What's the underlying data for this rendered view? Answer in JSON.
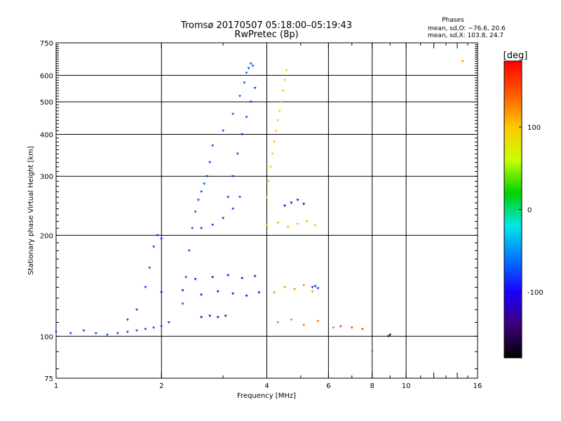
{
  "chart_data": {
    "type": "scatter",
    "title": "Tromsø 20170507 05:18:00–05:19:43",
    "subtitle": "RwPretec (8p)",
    "xlabel": "Frequency [MHz]",
    "ylabel": "Stationary phase Virtual Height [km]",
    "x_scale": "log",
    "y_scale": "log",
    "xlim": [
      1,
      16
    ],
    "ylim": [
      75,
      750
    ],
    "x_ticks": [
      1,
      2,
      4,
      6,
      8,
      10,
      16
    ],
    "y_ticks": [
      75,
      100,
      200,
      300,
      400,
      500,
      600,
      750
    ],
    "x_gridlines": [
      2,
      4,
      6,
      8,
      10
    ],
    "y_gridlines": [
      100,
      200,
      300,
      400,
      500,
      600
    ],
    "grid": true,
    "colorbar": {
      "label": "[deg]",
      "min": -180,
      "max": 180,
      "ticks": [
        100,
        0,
        -100
      ],
      "colormap": [
        "#000000",
        "#3c0078",
        "#1a00ff",
        "#0077ff",
        "#00e6e6",
        "#00d200",
        "#c8ff00",
        "#ffc800",
        "#ff5a00",
        "#ff0000"
      ]
    },
    "phase_info": {
      "title": "Phases",
      "O": "mean, sd,O: −76.6, 20.6",
      "X": "mean, sd,X: 103.8, 24.7"
    },
    "traces": [
      {
        "name": "",
        "phase": -80,
        "x": [
          1.0,
          1.1,
          1.2,
          1.3,
          1.4,
          1.5,
          1.6,
          1.7,
          1.8,
          1.9,
          2.0,
          2.1
        ],
        "y": [
          103,
          102,
          104,
          102,
          101,
          102,
          103,
          104,
          105,
          106,
          107,
          110
        ]
      },
      {
        "name": "",
        "phase": -80,
        "x": [
          1.6,
          1.7,
          1.8,
          1.85,
          1.9,
          1.95,
          2.0
        ],
        "y": [
          112,
          120,
          140,
          160,
          185,
          200,
          195
        ]
      },
      {
        "name": "",
        "phase": -75,
        "x": [
          2.3,
          2.35,
          2.4,
          2.45,
          2.5,
          2.55,
          2.6,
          2.65,
          2.7,
          2.75
        ],
        "y": [
          125,
          150,
          180,
          210,
          235,
          255,
          270,
          285,
          300,
          330
        ]
      },
      {
        "name": "",
        "phase": -80,
        "x": [
          2.6,
          2.8,
          3.0,
          3.2,
          3.35
        ],
        "y": [
          210,
          215,
          225,
          240,
          260
        ]
      },
      {
        "name": "",
        "phase": -70,
        "x": [
          2.8,
          3.0,
          3.2,
          3.35,
          3.45,
          3.5,
          3.55,
          3.6,
          3.65
        ],
        "y": [
          370,
          410,
          460,
          520,
          570,
          610,
          630,
          650,
          640
        ]
      },
      {
        "name": "",
        "phase": -80,
        "x": [
          3.1,
          3.2,
          3.3,
          3.4,
          3.5,
          3.6,
          3.7
        ],
        "y": [
          260,
          300,
          350,
          400,
          450,
          500,
          550
        ]
      },
      {
        "name": "",
        "phase": -100,
        "x": [
          2.0,
          2.3,
          2.6,
          2.9,
          3.2,
          3.5,
          3.8
        ],
        "y": [
          135,
          137,
          133,
          136,
          134,
          132,
          135
        ]
      },
      {
        "name": "",
        "phase": -110,
        "x": [
          2.5,
          2.8,
          3.1,
          3.4,
          3.7
        ],
        "y": [
          148,
          150,
          152,
          149,
          151
        ]
      },
      {
        "name": "",
        "phase": -120,
        "x": [
          2.6,
          2.75,
          2.9,
          3.05
        ],
        "y": [
          114,
          115,
          114,
          115
        ]
      },
      {
        "name": "",
        "phase": 100,
        "x": [
          4.0,
          4.05,
          4.1,
          4.15,
          4.2,
          4.25,
          4.3,
          4.35,
          4.4,
          4.45,
          4.5,
          4.55
        ],
        "y": [
          260,
          290,
          320,
          350,
          380,
          410,
          440,
          470,
          500,
          540,
          580,
          620
        ]
      },
      {
        "name": "",
        "phase": 110,
        "x": [
          4.0,
          4.3,
          4.6,
          4.9,
          5.2,
          5.5
        ],
        "y": [
          215,
          218,
          212,
          216,
          220,
          214
        ]
      },
      {
        "name": "",
        "phase": 120,
        "x": [
          4.2,
          4.5,
          4.8,
          5.1,
          5.4
        ],
        "y": [
          135,
          140,
          138,
          142,
          136
        ]
      },
      {
        "name": "",
        "phase": 130,
        "x": [
          4.3,
          4.7,
          5.1,
          5.6,
          6.2
        ],
        "y": [
          110,
          112,
          108,
          111,
          106
        ]
      },
      {
        "name": "",
        "phase": -90,
        "x": [
          5.4,
          5.5,
          5.6
        ],
        "y": [
          140,
          141,
          139
        ]
      },
      {
        "name": "",
        "phase": -110,
        "x": [
          4.5,
          4.7,
          4.9,
          5.1
        ],
        "y": [
          245,
          250,
          255,
          248
        ]
      },
      {
        "name": "",
        "phase": -140,
        "x": [
          8.9,
          9.0
        ],
        "y": [
          100,
          101
        ]
      },
      {
        "name": "",
        "phase": 150,
        "x": [
          6.5,
          7.0,
          7.5,
          8.0
        ],
        "y": [
          107,
          106,
          105,
          90
        ]
      },
      {
        "name": "",
        "phase": 120,
        "x": [
          14.5
        ],
        "y": [
          660
        ]
      }
    ]
  }
}
